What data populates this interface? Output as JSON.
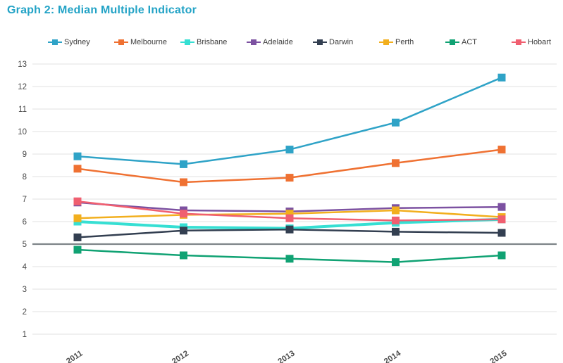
{
  "page": {
    "background": "#ffffff"
  },
  "chart_data": {
    "type": "line",
    "title": "Graph 2: Median Multiple Indicator",
    "title_color": "#23a3c6",
    "xlabel": "",
    "ylabel": "",
    "x": [
      "2011",
      "2012",
      "2013",
      "2014",
      "2015"
    ],
    "ylim": [
      1,
      13
    ],
    "yticks": [
      1,
      2,
      3,
      4,
      5,
      6,
      7,
      8,
      9,
      10,
      11,
      12,
      13
    ],
    "grid": true,
    "gridline_color": "#e7e7e7",
    "tick_label_color": "#4a4a4a",
    "legend_position": "top",
    "reference_line": {
      "value": 5,
      "color": "#7e8488"
    },
    "series": [
      {
        "name": "Sydney",
        "color": "#2fa3c7",
        "line_width": 2.5,
        "values": [
          8.9,
          8.55,
          9.2,
          10.4,
          12.4
        ]
      },
      {
        "name": "Melbourne",
        "color": "#ef7132",
        "line_width": 2.5,
        "values": [
          8.35,
          7.75,
          7.95,
          8.6,
          9.2
        ]
      },
      {
        "name": "Brisbane",
        "color": "#36dfd3",
        "line_width": 4,
        "values": [
          6.0,
          5.75,
          5.7,
          5.95,
          6.1
        ]
      },
      {
        "name": "Adelaide",
        "color": "#7c51a1",
        "line_width": 2.5,
        "values": [
          6.85,
          6.5,
          6.45,
          6.6,
          6.65
        ]
      },
      {
        "name": "Darwin",
        "color": "#333f51",
        "line_width": 2.5,
        "values": [
          5.3,
          5.6,
          5.65,
          5.55,
          5.5
        ]
      },
      {
        "name": "Perth",
        "color": "#f2af1e",
        "line_width": 2.5,
        "values": [
          6.15,
          6.3,
          6.35,
          6.5,
          6.2
        ]
      },
      {
        "name": "ACT",
        "color": "#10a273",
        "line_width": 2.5,
        "values": [
          4.75,
          4.5,
          4.35,
          4.2,
          4.5
        ]
      },
      {
        "name": "Hobart",
        "color": "#f05f70",
        "line_width": 2.5,
        "values": [
          6.9,
          6.35,
          6.15,
          6.05,
          6.1
        ]
      }
    ]
  }
}
